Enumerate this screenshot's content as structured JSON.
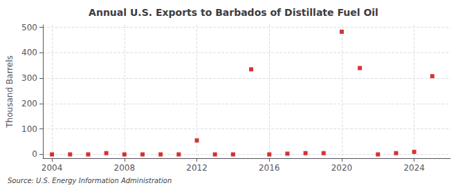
{
  "chart_data": {
    "type": "scatter",
    "title": "Annual U.S. Exports to Barbados of Distillate Fuel Oil",
    "ylabel": "Thousand Barrels",
    "annotation": "Source: U.S. Energy Information Administration",
    "x": [
      2004,
      2005,
      2006,
      2007,
      2008,
      2009,
      2010,
      2011,
      2012,
      2013,
      2014,
      2015,
      2016,
      2017,
      2018,
      2019,
      2020,
      2021,
      2022,
      2023,
      2024,
      2025
    ],
    "values": [
      0,
      0,
      0,
      5,
      0,
      0,
      0,
      0,
      55,
      0,
      0,
      335,
      0,
      3,
      5,
      5,
      483,
      340,
      0,
      5,
      10,
      308
    ],
    "color": "#cc0000",
    "marker": "square",
    "xlim": [
      2003.5,
      2026
    ],
    "ylim": [
      -15,
      510
    ],
    "xticks": [
      2004,
      2008,
      2012,
      2016,
      2020,
      2024
    ],
    "yticks": [
      0,
      100,
      200,
      300,
      400,
      500
    ],
    "grid": true
  }
}
